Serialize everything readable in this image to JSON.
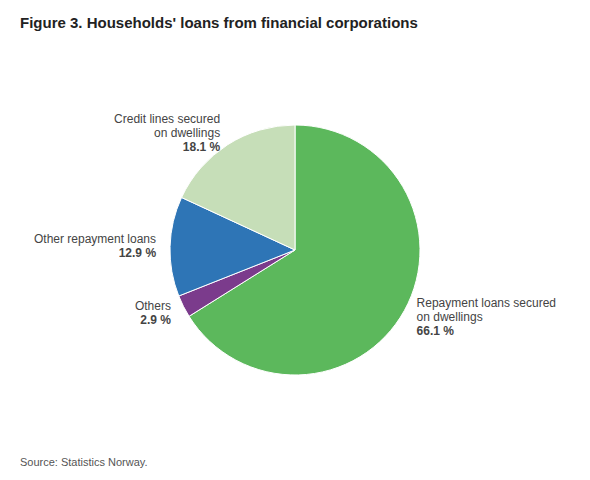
{
  "chart_data": {
    "type": "pie",
    "title": "Figure 3. Households' loans from financial corporations",
    "categories": [
      "Repayment loans secured\non dwellings",
      "Others",
      "Other repayment loans",
      "Credit lines secured\non dwellings"
    ],
    "values": [
      66.1,
      2.9,
      12.9,
      18.1
    ],
    "value_labels": [
      "66.1 %",
      "2.9 %",
      "12.9 %",
      "18.1 %"
    ],
    "colors": [
      "#5cb85c",
      "#7b3b8c",
      "#2e75b6",
      "#c6deb8"
    ],
    "data_labels": true,
    "source": "Source: Statistics Norway."
  }
}
